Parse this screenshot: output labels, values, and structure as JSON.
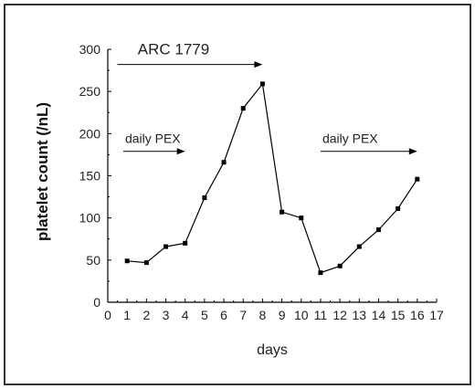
{
  "chart_data": {
    "type": "line",
    "xlabel": "days",
    "ylabel": "platelet count (/nL)",
    "xlim": [
      0,
      17
    ],
    "ylim": [
      0,
      300
    ],
    "x_ticks": [
      "0",
      "1",
      "2",
      "3",
      "4",
      "5",
      "6",
      "7",
      "8",
      "9",
      "10",
      "11",
      "12",
      "13",
      "14",
      "15",
      "16",
      "17"
    ],
    "y_ticks": [
      "0",
      "50",
      "100",
      "150",
      "200",
      "250",
      "300"
    ],
    "grid": false,
    "series": [
      {
        "x": [
          1,
          2,
          3,
          4,
          5,
          6,
          7,
          8,
          9,
          10,
          11,
          12,
          13,
          14,
          15,
          16
        ],
        "y": [
          49,
          47,
          66,
          70,
          124,
          166,
          230,
          259,
          107,
          100,
          35,
          43,
          66,
          86,
          111,
          146
        ],
        "marker": "square",
        "color": "#000000"
      }
    ],
    "annotations": [
      {
        "text": "ARC 1779",
        "arrow_from": 0.5,
        "arrow_to": 8,
        "y": 282,
        "size": "large"
      },
      {
        "text": "daily PEX",
        "arrow_from": 0.8,
        "arrow_to": 4,
        "y": 179,
        "size": "small"
      },
      {
        "text": "daily PEX",
        "arrow_from": 11,
        "arrow_to": 16,
        "y": 179,
        "size": "small"
      }
    ]
  }
}
